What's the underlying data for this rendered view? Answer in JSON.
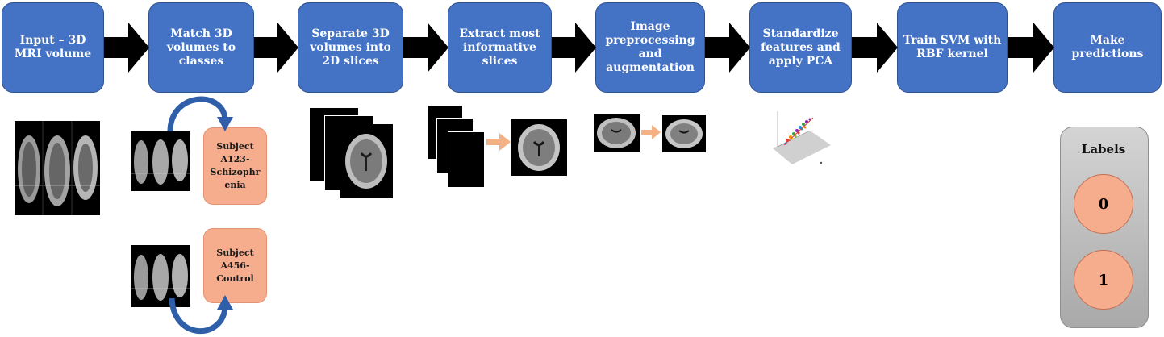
{
  "steps": [
    {
      "label": "Input – 3D\nMRI volume"
    },
    {
      "label": "Match 3D\nvolumes to\nclasses"
    },
    {
      "label": "Separate 3D\nvolumes into\n2D slices"
    },
    {
      "label": "Extract most\ninformative\nslices"
    },
    {
      "label": "Image\npreprocessing\nand\naugmentation"
    },
    {
      "label": "Standardize\nfeatures and\napply PCA"
    },
    {
      "label": "Train SVM with\nRBF kernel"
    },
    {
      "label": "Make\npredictions"
    }
  ],
  "subjects": [
    {
      "label": "Subject\nA123-\nSchizophr\nenia"
    },
    {
      "label": "Subject\nA456-\nControl"
    }
  ],
  "labels_panel": {
    "title": "Labels",
    "classes": [
      "0",
      "1"
    ]
  },
  "colors": {
    "step_fill": "#4472c4",
    "subject_fill": "#f6ad8e",
    "flow_arrow": "#000000",
    "small_arrow": "#f4b183",
    "curve_arrow": "#2e5fa8"
  },
  "icons": {
    "flow_arrow": "black-right-arrow-icon",
    "transform_arrow": "peach-right-arrow-icon",
    "match_arrow": "curved-arrow-icon"
  }
}
